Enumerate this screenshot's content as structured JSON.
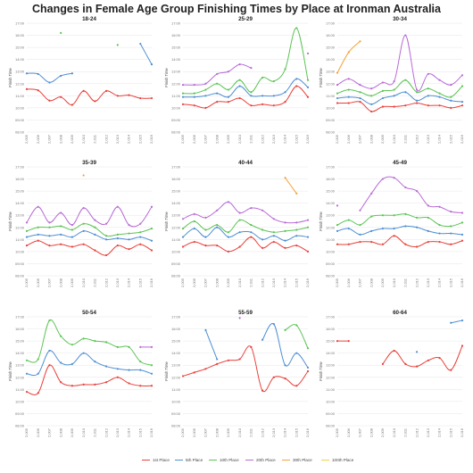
{
  "title": "Changes in Female Age Group Finishing Times by Place at Ironman Australia",
  "series_colors": {
    "1st Place": "#e8403a",
    "5th Place": "#4f8fd4",
    "10th Place": "#5cc456",
    "20th Place": "#b86bd6",
    "30th Place": "#f5a03a",
    "100th Place": "#f2d23c"
  },
  "legend": [
    "1st Place",
    "5th Place",
    "10th Place",
    "20th Place",
    "30th Place",
    "100th Place"
  ],
  "chart_data": [
    {
      "type": "line",
      "title": "18-24",
      "ylabel": "Finish Time",
      "ylim": [
        8,
        17
      ],
      "yticks": [
        "08:00",
        "09:00",
        "10:00",
        "11:00",
        "12:00",
        "13:00",
        "14:00",
        "15:00",
        "16:00",
        "17:00"
      ],
      "x": [
        "2,005",
        "2,006",
        "2,007",
        "2,008",
        "2,009",
        "2,010",
        "2,011",
        "2,012",
        "2,013",
        "2,014",
        "2,015",
        "2,016"
      ],
      "series": [
        {
          "name": "1st Place",
          "values": [
            11.55,
            11.45,
            10.6,
            10.9,
            10.25,
            11.4,
            10.55,
            11.4,
            11.0,
            11.05,
            10.8,
            10.8
          ]
        },
        {
          "name": "5th Place",
          "values": [
            12.85,
            12.8,
            12.1,
            12.65,
            12.85,
            null,
            null,
            null,
            null,
            null,
            15.3,
            13.6
          ]
        },
        {
          "name": "10th Place",
          "values": [
            null,
            null,
            null,
            16.2,
            null,
            null,
            null,
            null,
            15.2,
            null,
            null,
            null
          ]
        }
      ]
    },
    {
      "type": "line",
      "title": "25-29",
      "ylabel": "Finish Time",
      "ylim": [
        8,
        17
      ],
      "yticks": [
        "08:00",
        "09:00",
        "10:00",
        "11:00",
        "12:00",
        "13:00",
        "14:00",
        "15:00",
        "16:00",
        "17:00"
      ],
      "x": [
        "2,005",
        "2,006",
        "2,007",
        "2,008",
        "2,009",
        "2,010",
        "2,011",
        "2,012",
        "2,013",
        "2,014",
        "2,015",
        "2,016"
      ],
      "series": [
        {
          "name": "1st Place",
          "values": [
            10.3,
            10.2,
            10.0,
            10.5,
            10.5,
            10.8,
            10.2,
            10.3,
            10.2,
            10.5,
            11.8,
            10.9
          ]
        },
        {
          "name": "5th Place",
          "values": [
            10.9,
            10.9,
            11.0,
            11.2,
            10.9,
            11.8,
            11.0,
            11.0,
            11.0,
            11.3,
            12.4,
            11.7
          ]
        },
        {
          "name": "10th Place",
          "values": [
            11.2,
            11.2,
            11.5,
            12.0,
            11.5,
            12.3,
            11.3,
            12.5,
            12.2,
            13.2,
            16.6,
            12.3
          ]
        },
        {
          "name": "20th Place",
          "values": [
            11.9,
            11.9,
            12.0,
            12.8,
            13.0,
            13.6,
            13.3,
            null,
            null,
            null,
            null,
            14.5
          ]
        }
      ]
    },
    {
      "type": "line",
      "title": "30-34",
      "ylabel": "Finish Time",
      "ylim": [
        8,
        17
      ],
      "yticks": [
        "08:00",
        "09:00",
        "10:00",
        "11:00",
        "12:00",
        "13:00",
        "14:00",
        "15:00",
        "16:00",
        "17:00"
      ],
      "x": [
        "2,005",
        "2,006",
        "2,007",
        "2,008",
        "2,009",
        "2,010",
        "2,011",
        "2,012",
        "2,013",
        "2,014",
        "2,015",
        "2,016"
      ],
      "series": [
        {
          "name": "1st Place",
          "values": [
            10.4,
            10.4,
            10.5,
            9.7,
            10.1,
            10.1,
            10.2,
            10.4,
            10.2,
            10.2,
            10.0,
            10.2
          ]
        },
        {
          "name": "5th Place",
          "values": [
            10.8,
            10.9,
            10.8,
            10.3,
            10.8,
            11.0,
            11.3,
            10.6,
            11.0,
            10.9,
            10.6,
            10.5
          ]
        },
        {
          "name": "10th Place",
          "values": [
            11.2,
            11.5,
            11.3,
            11.0,
            11.4,
            11.5,
            12.3,
            11.3,
            11.6,
            11.2,
            10.9,
            11.8
          ]
        },
        {
          "name": "20th Place",
          "values": [
            11.9,
            12.4,
            11.9,
            11.6,
            12.1,
            12.2,
            16.0,
            11.5,
            12.8,
            12.3,
            11.9,
            12.7
          ]
        },
        {
          "name": "30th Place",
          "values": [
            12.9,
            14.6,
            15.5,
            null,
            null,
            null,
            null,
            null,
            null,
            null,
            null,
            null
          ]
        }
      ]
    },
    {
      "type": "line",
      "title": "35-39",
      "ylabel": "Finish Time",
      "ylim": [
        8,
        17
      ],
      "yticks": [
        "08:00",
        "09:00",
        "10:00",
        "11:00",
        "12:00",
        "13:00",
        "14:00",
        "15:00",
        "16:00",
        "17:00"
      ],
      "x": [
        "2,005",
        "2,006",
        "2,007",
        "2,008",
        "2,009",
        "2,010",
        "2,011",
        "2,012",
        "2,013",
        "2,014",
        "2,015",
        "2,016"
      ],
      "series": [
        {
          "name": "1st Place",
          "values": [
            10.5,
            10.9,
            10.5,
            10.6,
            10.4,
            10.6,
            10.1,
            9.7,
            10.5,
            10.2,
            10.6,
            10.1
          ]
        },
        {
          "name": "5th Place",
          "values": [
            11.2,
            11.4,
            11.3,
            11.4,
            11.2,
            11.7,
            11.4,
            11.0,
            11.1,
            11.0,
            11.2,
            10.9
          ]
        },
        {
          "name": "10th Place",
          "values": [
            11.7,
            12.0,
            12.0,
            12.1,
            11.8,
            12.3,
            12.0,
            11.3,
            11.4,
            11.5,
            11.6,
            11.9
          ]
        },
        {
          "name": "20th Place",
          "values": [
            12.4,
            13.7,
            12.4,
            13.2,
            12.2,
            13.6,
            12.6,
            12.3,
            13.7,
            12.2,
            12.3,
            13.7
          ]
        },
        {
          "name": "30th Place",
          "values": [
            null,
            null,
            null,
            null,
            null,
            16.3,
            null,
            null,
            null,
            null,
            null,
            null
          ]
        }
      ]
    },
    {
      "type": "line",
      "title": "40-44",
      "ylabel": "Finish Time",
      "ylim": [
        8,
        17
      ],
      "yticks": [
        "08:00",
        "09:00",
        "10:00",
        "11:00",
        "12:00",
        "13:00",
        "14:00",
        "15:00",
        "16:00",
        "17:00"
      ],
      "x": [
        "2,005",
        "2,006",
        "2,007",
        "2,008",
        "2,009",
        "2,010",
        "2,011",
        "2,012",
        "2,013",
        "2,014",
        "2,015",
        "2,016"
      ],
      "series": [
        {
          "name": "1st Place",
          "values": [
            10.4,
            10.8,
            10.5,
            10.5,
            10.0,
            10.4,
            11.2,
            10.3,
            10.8,
            10.3,
            10.5,
            10.0
          ]
        },
        {
          "name": "5th Place",
          "values": [
            11.2,
            11.9,
            11.2,
            12.0,
            11.2,
            11.6,
            11.6,
            11.0,
            11.3,
            10.9,
            11.3,
            11.2
          ]
        },
        {
          "name": "10th Place",
          "values": [
            11.9,
            12.5,
            11.8,
            12.2,
            11.6,
            12.6,
            12.2,
            11.8,
            11.6,
            11.7,
            11.8,
            12.0
          ]
        },
        {
          "name": "20th Place",
          "values": [
            12.7,
            13.1,
            12.8,
            13.4,
            14.1,
            13.2,
            13.6,
            13.4,
            12.7,
            12.4,
            12.4,
            12.6
          ]
        },
        {
          "name": "30th Place",
          "values": [
            null,
            null,
            null,
            null,
            null,
            null,
            null,
            null,
            null,
            16.1,
            14.8,
            null
          ]
        }
      ]
    },
    {
      "type": "line",
      "title": "45-49",
      "ylabel": "Finish Time",
      "ylim": [
        8,
        17
      ],
      "yticks": [
        "08:00",
        "09:00",
        "10:00",
        "11:00",
        "12:00",
        "13:00",
        "14:00",
        "15:00",
        "16:00",
        "17:00"
      ],
      "x": [
        "2,005",
        "2,006",
        "2,007",
        "2,008",
        "2,009",
        "2,010",
        "2,011",
        "2,012",
        "2,013",
        "2,014",
        "2,015",
        "2,016"
      ],
      "series": [
        {
          "name": "1st Place",
          "values": [
            10.6,
            10.6,
            10.8,
            10.8,
            10.6,
            11.3,
            10.6,
            10.4,
            10.8,
            10.8,
            10.6,
            10.9
          ]
        },
        {
          "name": "5th Place",
          "values": [
            11.7,
            11.9,
            11.4,
            11.7,
            11.9,
            11.9,
            12.1,
            12.0,
            11.7,
            11.5,
            11.5,
            11.4
          ]
        },
        {
          "name": "10th Place",
          "values": [
            12.2,
            12.6,
            12.2,
            12.9,
            13.0,
            13.0,
            13.1,
            12.8,
            12.8,
            12.2,
            12.1,
            12.4
          ]
        },
        {
          "name": "20th Place",
          "values": [
            13.8,
            null,
            13.4,
            14.8,
            16.0,
            16.1,
            15.3,
            15.0,
            13.8,
            13.7,
            13.3,
            13.2
          ]
        }
      ]
    },
    {
      "type": "line",
      "title": "50-54",
      "ylabel": "Finish Time",
      "ylim": [
        8,
        17
      ],
      "yticks": [
        "08:00",
        "09:00",
        "10:00",
        "11:00",
        "12:00",
        "13:00",
        "14:00",
        "15:00",
        "16:00",
        "17:00"
      ],
      "x": [
        "2,005",
        "2,006",
        "2,007",
        "2,008",
        "2,009",
        "2,010",
        "2,011",
        "2,012",
        "2,013",
        "2,014",
        "2,015",
        "2,016"
      ],
      "series": [
        {
          "name": "1st Place",
          "values": [
            10.8,
            10.7,
            13.0,
            11.6,
            11.3,
            11.4,
            11.4,
            11.6,
            12.0,
            11.5,
            11.3,
            11.3
          ]
        },
        {
          "name": "5th Place",
          "values": [
            12.3,
            12.3,
            14.2,
            13.2,
            13.1,
            14.0,
            13.3,
            12.9,
            12.7,
            12.6,
            12.6,
            12.3
          ]
        },
        {
          "name": "10th Place",
          "values": [
            13.4,
            13.5,
            16.7,
            15.4,
            14.7,
            15.2,
            15.0,
            14.9,
            14.5,
            14.5,
            13.3,
            13.0
          ]
        },
        {
          "name": "20th Place",
          "values": [
            null,
            null,
            null,
            null,
            null,
            null,
            null,
            null,
            null,
            null,
            14.5,
            14.5
          ]
        }
      ]
    },
    {
      "type": "line",
      "title": "55-59",
      "ylabel": "Finish Time",
      "ylim": [
        8,
        17
      ],
      "yticks": [
        "08:00",
        "09:00",
        "10:00",
        "11:00",
        "12:00",
        "13:00",
        "14:00",
        "15:00",
        "16:00",
        "17:00"
      ],
      "x": [
        "2,005",
        "2,006",
        "2,007",
        "2,008",
        "2,009",
        "2,010",
        "2,011",
        "2,012",
        "2,013",
        "2,014",
        "2,015",
        "2,016"
      ],
      "series": [
        {
          "name": "1st Place",
          "values": [
            12.1,
            12.4,
            12.7,
            13.1,
            13.4,
            13.5,
            14.5,
            10.9,
            12.0,
            11.9,
            11.3,
            12.5
          ]
        },
        {
          "name": "5th Place",
          "values": [
            null,
            null,
            15.9,
            13.5,
            null,
            null,
            null,
            15.1,
            16.4,
            13.0,
            14.0,
            12.8
          ]
        },
        {
          "name": "10th Place",
          "values": [
            null,
            null,
            null,
            null,
            null,
            null,
            null,
            null,
            null,
            15.9,
            16.3,
            14.4
          ]
        },
        {
          "name": "20th Place",
          "values": [
            null,
            null,
            null,
            null,
            null,
            16.9,
            null,
            null,
            null,
            null,
            null,
            null
          ]
        }
      ]
    },
    {
      "type": "line",
      "title": "60-64",
      "ylabel": "Finish Time",
      "ylim": [
        8,
        17
      ],
      "yticks": [
        "08:00",
        "09:00",
        "10:00",
        "11:00",
        "12:00",
        "13:00",
        "14:00",
        "15:00",
        "16:00",
        "17:00"
      ],
      "x": [
        "2,005",
        "2,006",
        "2,007",
        "2,008",
        "2,009",
        "2,010",
        "2,011",
        "2,012",
        "2,013",
        "2,014",
        "2,015",
        "2,016"
      ],
      "series": [
        {
          "name": "1st Place",
          "values": [
            15.0,
            15.0,
            null,
            null,
            13.1,
            14.2,
            13.1,
            12.9,
            13.4,
            13.6,
            12.6,
            14.6
          ]
        },
        {
          "name": "5th Place",
          "values": [
            null,
            null,
            null,
            null,
            null,
            null,
            null,
            14.1,
            null,
            null,
            16.5,
            16.7
          ]
        }
      ]
    }
  ]
}
